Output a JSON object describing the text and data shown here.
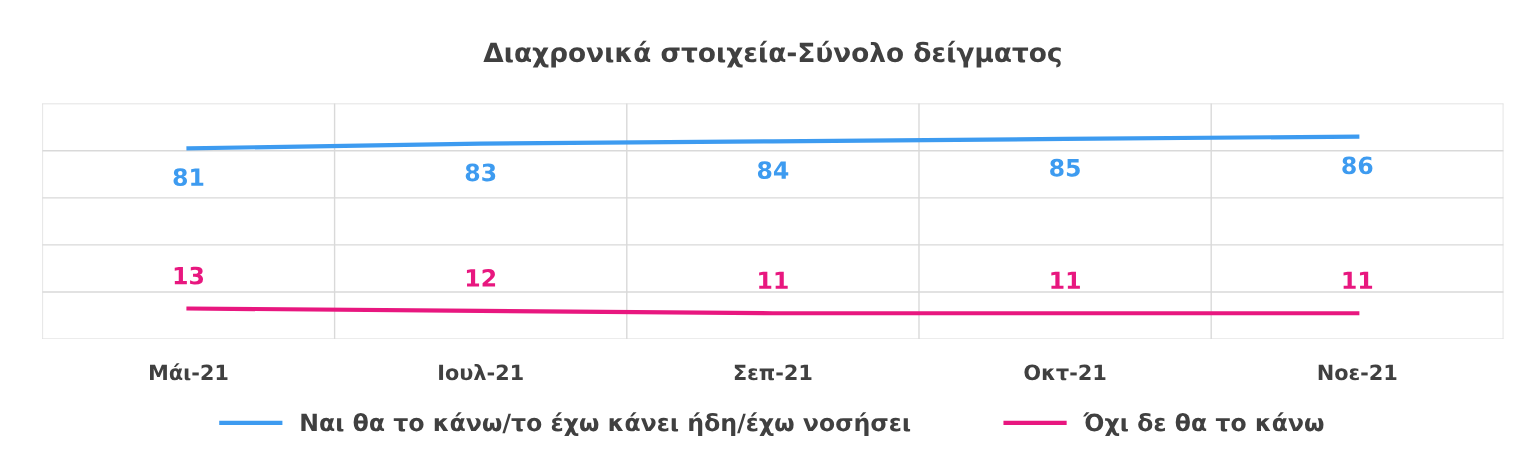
{
  "chart_data": {
    "type": "line",
    "title": "Διαχρονικά στοιχεία-Σύνολο δείγματος",
    "categories": [
      "Μάι-21",
      "Ιουλ-21",
      "Σεπ-21",
      "Οκτ-21",
      "Νοε-21"
    ],
    "series": [
      {
        "name": "Ναι θα το κάνω/το έχω κάνει ήδη/έχω νοσήσει",
        "color": "#3d9bf0",
        "values": [
          81,
          83,
          84,
          85,
          86
        ]
      },
      {
        "name": "Όχι δε θα το κάνω",
        "color": "#e8177f",
        "values": [
          13,
          12,
          11,
          11,
          11
        ]
      }
    ],
    "ylim": [
      0,
      100
    ],
    "yticks": [
      {
        "value": 0,
        "label": null
      },
      {
        "value": 20,
        "label": null
      },
      {
        "value": 40,
        "label": null
      },
      {
        "value": 60,
        "label": null
      },
      {
        "value": 80,
        "label": null
      },
      {
        "value": 100,
        "label": null
      }
    ],
    "tick_labels": "x",
    "grid": true,
    "legend": "bottom",
    "data_labels": true,
    "marker": "none",
    "line_style": "solid"
  }
}
